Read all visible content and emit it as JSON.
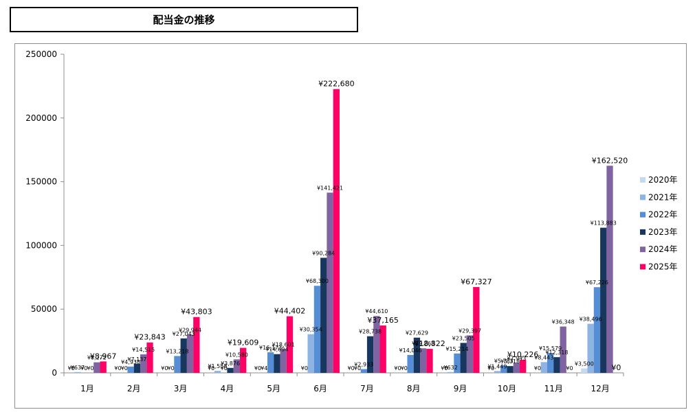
{
  "page": {
    "title": "配当金の推移"
  },
  "chart_data": {
    "type": "bar",
    "title": "配当金の推移",
    "xlabel": "",
    "ylabel": "",
    "ylim": [
      0,
      250000
    ],
    "yticks": [
      0,
      50000,
      100000,
      150000,
      200000,
      250000
    ],
    "y_tick_labels": [
      "0",
      "50000",
      "100000",
      "150000",
      "200000",
      "250000"
    ],
    "legend_position": "right",
    "grid": false,
    "categories": [
      "1月",
      "2月",
      "3月",
      "4月",
      "5月",
      "6月",
      "7月",
      "8月",
      "9月",
      "10月",
      "11月",
      "12月"
    ],
    "series": [
      {
        "name": "2020年",
        "color": "#c5d9f1",
        "values": [
          0,
          0,
          0,
          0,
          0,
          0,
          0,
          0,
          0,
          0,
          0,
          3500
        ],
        "labels": [
          "¥0",
          "¥0",
          "¥0",
          "¥0",
          "¥0",
          "¥0",
          "¥0",
          "¥0",
          "¥0",
          "¥0",
          "¥0",
          "¥3,500"
        ]
      },
      {
        "name": "2021年",
        "color": "#8db4e2",
        "values": [
          637,
          0,
          0,
          1558,
          4,
          30354,
          0,
          0,
          632,
          1449,
          8443,
          38496
        ],
        "labels": [
          "¥637",
          "¥0",
          "¥0",
          "¥1,558",
          "¥4",
          "¥30,354",
          "¥0",
          "¥0",
          "¥632",
          "¥1,449",
          "¥8,443",
          "¥38,496"
        ]
      },
      {
        "name": "2022年",
        "color": "#558ed5",
        "values": [
          0,
          4938,
          13218,
          0,
          16173,
          68300,
          2933,
          14046,
          15214,
          5783,
          15579,
          67226
        ],
        "labels": [
          "¥0",
          "¥4,938",
          "¥13,218",
          "¥0",
          "¥16,173",
          "¥68,300",
          "¥2,933",
          "¥14,046",
          "¥15,214",
          "¥5,783",
          "¥15,579",
          "¥67,226"
        ]
      },
      {
        "name": "2023年",
        "color": "#17375e",
        "values": [
          0,
          7137,
          27043,
          3876,
          14694,
          90284,
          28738,
          27629,
          23505,
          5318,
          12318,
          113883
        ],
        "labels": [
          "¥0",
          "¥7,137",
          "¥27,043",
          "¥3,876",
          "¥14,694",
          "¥90,284",
          "¥28,738",
          "¥27,629",
          "¥23,505",
          "¥5,318",
          "¥12,318",
          "¥113,883"
        ]
      },
      {
        "name": "2024年",
        "color": "#8064a2",
        "values": [
          8272,
          14515,
          29944,
          10580,
          18601,
          141421,
          44610,
          19263,
          29397,
          7943,
          36348,
          162520
        ],
        "labels": [
          "¥8,272",
          "¥14,515",
          "¥29,944",
          "¥10,580",
          "¥18,601",
          "¥141,421",
          "¥44,610",
          "¥19,263",
          "¥29,397",
          "¥7,943",
          "¥36,348",
          "¥162,520"
        ]
      },
      {
        "name": "2025年",
        "color": "#ff0066",
        "values": [
          8967,
          23843,
          43803,
          19609,
          44402,
          222680,
          37165,
          18822,
          67327,
          10226,
          0,
          0
        ],
        "labels": [
          "¥8,967",
          "¥23,843",
          "¥43,803",
          "¥19,609",
          "¥44,402",
          "¥222,680",
          "¥37,165",
          "¥18,822",
          "¥67,327",
          "¥10,226",
          "¥0",
          "¥0"
        ]
      }
    ]
  }
}
